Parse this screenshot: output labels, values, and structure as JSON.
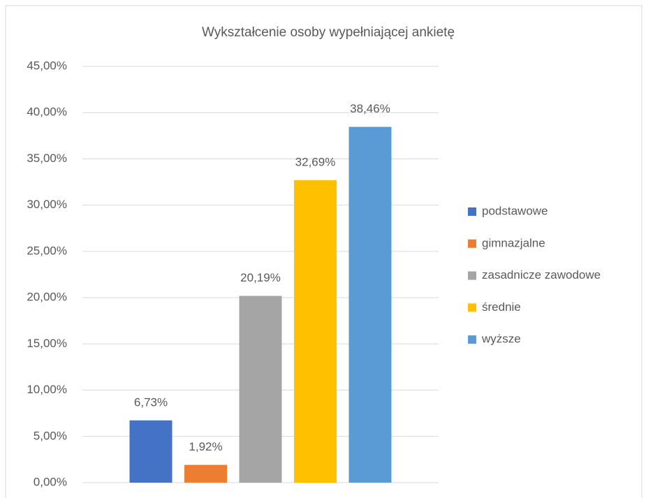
{
  "chart_data": {
    "type": "bar",
    "title": "Wykształcenie osoby wypełniającej ankietę",
    "categories": [
      null
    ],
    "series": [
      {
        "name": "podstawowe",
        "color": "#4472c4",
        "values": [
          6.73
        ],
        "value_labels": [
          "6,73%"
        ]
      },
      {
        "name": "gimnazjalne",
        "color": "#ed7d31",
        "values": [
          1.92
        ],
        "value_labels": [
          "1,92%"
        ]
      },
      {
        "name": "zasadnicze zawodowe",
        "color": "#a5a5a5",
        "values": [
          20.19
        ],
        "value_labels": [
          "20,19%"
        ]
      },
      {
        "name": "średnie",
        "color": "#ffc000",
        "values": [
          32.69
        ],
        "value_labels": [
          "32,69%"
        ]
      },
      {
        "name": "wyższe",
        "color": "#5b9bd5",
        "values": [
          38.46
        ],
        "value_labels": [
          "38,46%"
        ]
      }
    ],
    "ylim": [
      0,
      45
    ],
    "yticks": [
      {
        "value": 0,
        "label": "0,00%"
      },
      {
        "value": 5,
        "label": "5,00%"
      },
      {
        "value": 10,
        "label": "10,00%"
      },
      {
        "value": 15,
        "label": "15,00%"
      },
      {
        "value": 20,
        "label": "20,00%"
      },
      {
        "value": 25,
        "label": "25,00%"
      },
      {
        "value": 30,
        "label": "30,00%"
      },
      {
        "value": 35,
        "label": "35,00%"
      },
      {
        "value": 40,
        "label": "40,00%"
      },
      {
        "value": 45,
        "label": "45,00%"
      }
    ],
    "grid": true,
    "legend": "right"
  }
}
